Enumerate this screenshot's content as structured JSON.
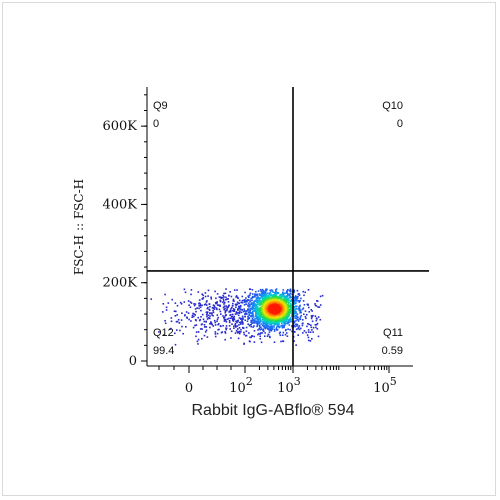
{
  "chart_data": {
    "type": "scatter",
    "xlabel": "Rabbit IgG-ABflo® 594",
    "ylabel": "FSC-H :: FSC-H",
    "x_scale": "biexponential",
    "x_ticks": [
      {
        "label": "0",
        "value": 0
      },
      {
        "label": "10",
        "sup": "2",
        "value": 100
      },
      {
        "label": "10",
        "sup": "3",
        "value": 1000
      },
      {
        "label": "10",
        "sup": "5",
        "value": 100000
      }
    ],
    "y_ticks": [
      {
        "label": "0",
        "value": 0
      },
      {
        "label": "200K",
        "value": 200000
      },
      {
        "label": "400K",
        "value": 400000
      },
      {
        "label": "600K",
        "value": 600000
      }
    ],
    "ylim": [
      0,
      700000
    ],
    "gates": {
      "x_threshold": 1000,
      "y_threshold": 230000
    },
    "quadrants": [
      {
        "name": "Q9",
        "value": "0",
        "position": "top-left"
      },
      {
        "name": "Q10",
        "value": "0",
        "position": "top-right"
      },
      {
        "name": "Q11",
        "value": "0.59",
        "position": "bottom-right"
      },
      {
        "name": "Q12",
        "value": "99.4",
        "position": "bottom-left"
      }
    ],
    "population": {
      "center_x": 400,
      "center_y": 135000,
      "color_map": "density-jet"
    }
  },
  "colors": {
    "axis": "#000000",
    "gate": "#000000",
    "low_density": "#1f2ccf",
    "high_density": "#ff1a00"
  }
}
